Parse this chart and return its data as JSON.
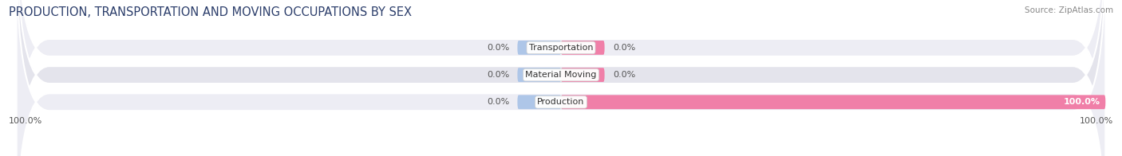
{
  "title": "PRODUCTION, TRANSPORTATION AND MOVING OCCUPATIONS BY SEX",
  "source": "Source: ZipAtlas.com",
  "categories": [
    "Transportation",
    "Material Moving",
    "Production"
  ],
  "male_values": [
    0.0,
    0.0,
    0.0
  ],
  "female_values": [
    0.0,
    0.0,
    100.0
  ],
  "male_color": "#aec6e8",
  "female_color": "#f07fa8",
  "bar_bg_color": "#e4e4ec",
  "bar_bg_color2": "#ededf4",
  "axis_label_left": "100.0%",
  "axis_label_right": "100.0%",
  "title_fontsize": 10.5,
  "source_fontsize": 7.5,
  "label_fontsize": 8,
  "tick_fontsize": 8,
  "background_color": "#ffffff",
  "bar_height": 0.52,
  "center_label_color": "#333333",
  "value_label_color": "#555555"
}
